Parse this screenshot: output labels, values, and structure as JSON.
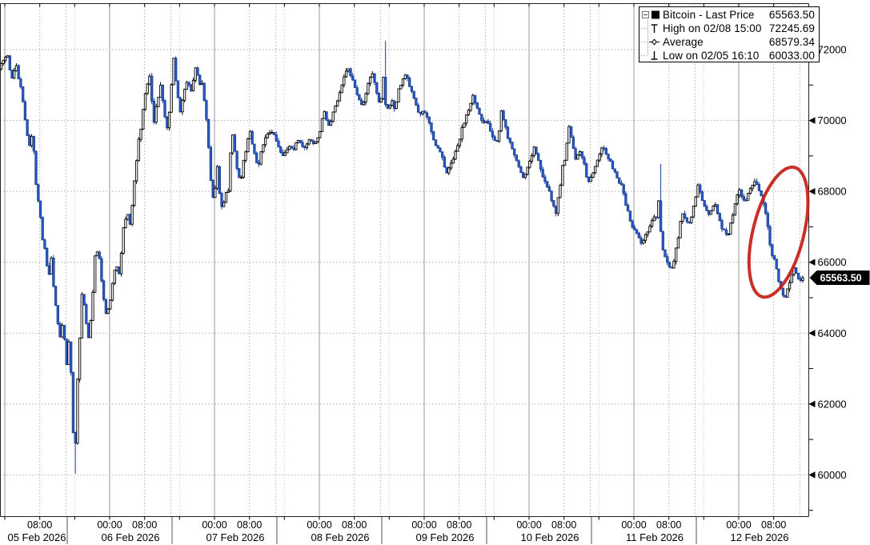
{
  "legend": {
    "rows": [
      {
        "icon": "expander-and-series-swatch",
        "label": "Bitcoin - Last Price",
        "value": "65563.50"
      },
      {
        "icon": "high-marker",
        "label": "High on 02/08 15:00",
        "value": "72245.69"
      },
      {
        "icon": "average-marker",
        "label": "Average",
        "value": "68579.34"
      },
      {
        "icon": "low-marker",
        "label": "Low on 02/05 16:10",
        "value": "60033.00"
      }
    ]
  },
  "last_price_tag": "65563.50",
  "y_axis": {
    "tick_values": [
      72000,
      70000,
      68000,
      66000,
      64000,
      62000,
      60000
    ],
    "minor_tick_values": [
      73000,
      71000,
      69000,
      67000,
      65000,
      63000,
      61000,
      59000
    ],
    "side": "right"
  },
  "x_axis": {
    "days": [
      {
        "date": "05 Feb 2026",
        "times": [
          "08:00"
        ]
      },
      {
        "date": "06 Feb 2026",
        "times": [
          "00:00",
          "08:00"
        ]
      },
      {
        "date": "07 Feb 2026",
        "times": [
          "00:00",
          "08:00"
        ]
      },
      {
        "date": "08 Feb 2026",
        "times": [
          "00:00",
          "08:00"
        ]
      },
      {
        "date": "09 Feb 2026",
        "times": [
          "00:00",
          "08:00"
        ]
      },
      {
        "date": "10 Feb 2026",
        "times": [
          "00:00",
          "08:00"
        ]
      },
      {
        "date": "11 Feb 2026",
        "times": [
          "00:00",
          "08:00"
        ]
      },
      {
        "date": "12 Feb 2026",
        "times": [
          "00:00",
          "08:00"
        ]
      }
    ]
  },
  "colors": {
    "candle_up_fill": "#ffffff",
    "candle_up_stroke": "#000000",
    "candle_down_fill": "#2b5fc5",
    "candle_down_stroke": "#1a3f96",
    "grid": "#8a8a8a",
    "day_line": "#9a9a9a",
    "axis_line": "#222222",
    "annotation_red": "#c42018",
    "badge_bg": "#000000",
    "badge_text": "#ffffff"
  },
  "chart_data": {
    "type": "candlestick",
    "title": "Bitcoin - Last Price",
    "last_price": 65563.5,
    "high": {
      "time": "02/08 15:00",
      "value": 72245.69
    },
    "average": 68579.34,
    "low": {
      "time": "02/05 16:10",
      "value": 60033.0
    },
    "ylim": [
      58800,
      73300
    ],
    "x_start": "05 Feb 2026 00:00",
    "x_end": "12 Feb 2026 15:00",
    "grid": true,
    "legend_position": "top-right",
    "series_units": "USD",
    "anchor_points_hours_vs_price": [
      [
        -1.6,
        71350
      ],
      [
        -0.8,
        71520
      ],
      [
        0.8,
        71900
      ],
      [
        1.8,
        71150
      ],
      [
        2.9,
        71550
      ],
      [
        4,
        70800
      ],
      [
        5.1,
        69900
      ],
      [
        5.8,
        69250
      ],
      [
        6.6,
        69600
      ],
      [
        7.4,
        68300
      ],
      [
        8.2,
        67400
      ],
      [
        8.8,
        66800
      ],
      [
        9.5,
        66300
      ],
      [
        10.3,
        65600
      ],
      [
        10.9,
        66200
      ],
      [
        11.7,
        64900
      ],
      [
        12.8,
        63900
      ],
      [
        13.6,
        64400
      ],
      [
        14.3,
        63000
      ],
      [
        15,
        63800
      ],
      [
        15.6,
        62500
      ],
      [
        16.17,
        60033
      ],
      [
        16.6,
        62300
      ],
      [
        17.2,
        63300
      ],
      [
        17.6,
        64400
      ],
      [
        18,
        65300
      ],
      [
        18.5,
        64700
      ],
      [
        19.3,
        63800
      ],
      [
        20.2,
        64700
      ],
      [
        20.9,
        66100
      ],
      [
        21.7,
        66400
      ],
      [
        22.5,
        65400
      ],
      [
        23.3,
        64600
      ],
      [
        24.2,
        64700
      ],
      [
        24.8,
        65300
      ],
      [
        25.8,
        66000
      ],
      [
        26.4,
        65600
      ],
      [
        27.3,
        66800
      ],
      [
        28.2,
        67500
      ],
      [
        29,
        67100
      ],
      [
        29.9,
        68300
      ],
      [
        31.1,
        69600
      ],
      [
        32.3,
        70600
      ],
      [
        33.3,
        71350
      ],
      [
        34.4,
        69950
      ],
      [
        35.2,
        70600
      ],
      [
        36,
        71000
      ],
      [
        36.8,
        70100
      ],
      [
        37.6,
        69700
      ],
      [
        38.3,
        70900
      ],
      [
        38.9,
        71750
      ],
      [
        39.6,
        70900
      ],
      [
        40.3,
        70200
      ],
      [
        41.1,
        70700
      ],
      [
        42,
        71100
      ],
      [
        42.9,
        70800
      ],
      [
        44,
        71550
      ],
      [
        44.7,
        71100
      ],
      [
        45.5,
        71000
      ],
      [
        46.2,
        70300
      ],
      [
        46.8,
        69300
      ],
      [
        47.4,
        68400
      ],
      [
        48.1,
        67600
      ],
      [
        48.5,
        68200
      ],
      [
        48.9,
        68730
      ],
      [
        49.4,
        67900
      ],
      [
        50.1,
        67500
      ],
      [
        50.8,
        67900
      ],
      [
        51.5,
        68100
      ],
      [
        52.2,
        69850
      ],
      [
        52.8,
        69200
      ],
      [
        53.6,
        68500
      ],
      [
        54.3,
        68300
      ],
      [
        55,
        68900
      ],
      [
        55.8,
        69400
      ],
      [
        56.5,
        69750
      ],
      [
        57.2,
        69100
      ],
      [
        58.2,
        68700
      ],
      [
        59.1,
        69200
      ],
      [
        60,
        69500
      ],
      [
        61,
        69700
      ],
      [
        61.9,
        69600
      ],
      [
        62.8,
        69350
      ],
      [
        63.7,
        68950
      ],
      [
        64.6,
        69150
      ],
      [
        65.5,
        69300
      ],
      [
        66.4,
        69200
      ],
      [
        67.3,
        69450
      ],
      [
        68.2,
        69300
      ],
      [
        69.1,
        69250
      ],
      [
        70,
        69500
      ],
      [
        70.9,
        69350
      ],
      [
        71.8,
        69450
      ],
      [
        72.4,
        69700
      ],
      [
        73.2,
        70300
      ],
      [
        73.8,
        70050
      ],
      [
        74.6,
        69800
      ],
      [
        75.3,
        70200
      ],
      [
        76.2,
        70500
      ],
      [
        77.1,
        70900
      ],
      [
        78,
        71300
      ],
      [
        78.9,
        71480
      ],
      [
        79.8,
        71150
      ],
      [
        80.7,
        70850
      ],
      [
        81.4,
        70600
      ],
      [
        82.2,
        70400
      ],
      [
        82.9,
        70800
      ],
      [
        83.7,
        71200
      ],
      [
        84.4,
        71300
      ],
      [
        85.1,
        70900
      ],
      [
        85.8,
        70500
      ],
      [
        86.4,
        70650
      ],
      [
        87,
        71300
      ],
      [
        87.4,
        70450
      ],
      [
        88.1,
        70250
      ],
      [
        88.8,
        70600
      ],
      [
        89.6,
        70300
      ],
      [
        90.4,
        70850
      ],
      [
        91.2,
        71150
      ],
      [
        92,
        71300
      ],
      [
        92.8,
        71000
      ],
      [
        93.6,
        70700
      ],
      [
        94.4,
        70400
      ],
      [
        95.2,
        70200
      ],
      [
        96,
        70300
      ],
      [
        96.7,
        70150
      ],
      [
        97.4,
        69900
      ],
      [
        98.1,
        69500
      ],
      [
        98.8,
        69300
      ],
      [
        99.6,
        69150
      ],
      [
        100.4,
        68950
      ],
      [
        101.3,
        68500
      ],
      [
        102,
        68650
      ],
      [
        102.8,
        68900
      ],
      [
        103.5,
        69100
      ],
      [
        104.3,
        69450
      ],
      [
        105,
        69800
      ],
      [
        105.8,
        70150
      ],
      [
        106.7,
        70450
      ],
      [
        107.4,
        70700
      ],
      [
        108.2,
        70350
      ],
      [
        109,
        70100
      ],
      [
        109.8,
        69900
      ],
      [
        110.6,
        70050
      ],
      [
        111.5,
        69700
      ],
      [
        112.4,
        69450
      ],
      [
        113.2,
        69400
      ],
      [
        113.8,
        70300
      ],
      [
        114.6,
        69900
      ],
      [
        115.5,
        69500
      ],
      [
        116.4,
        69200
      ],
      [
        117.3,
        68900
      ],
      [
        118.2,
        68600
      ],
      [
        119.1,
        68350
      ],
      [
        119.8,
        68700
      ],
      [
        120.6,
        68900
      ],
      [
        121.4,
        69250
      ],
      [
        122.3,
        68900
      ],
      [
        123.2,
        68500
      ],
      [
        124.1,
        68300
      ],
      [
        125,
        67900
      ],
      [
        125.6,
        67750
      ],
      [
        126.3,
        67300
      ],
      [
        127.1,
        68000
      ],
      [
        127.8,
        68600
      ],
      [
        128.6,
        69100
      ],
      [
        129.4,
        69850
      ],
      [
        130.2,
        69300
      ],
      [
        131,
        68900
      ],
      [
        131.9,
        69100
      ],
      [
        132.8,
        68800
      ],
      [
        133.7,
        68200
      ],
      [
        134.6,
        68450
      ],
      [
        135.5,
        68800
      ],
      [
        136.4,
        69100
      ],
      [
        137.1,
        69300
      ],
      [
        138,
        69000
      ],
      [
        138.9,
        68800
      ],
      [
        139.8,
        68600
      ],
      [
        140.7,
        68300
      ],
      [
        141.6,
        68100
      ],
      [
        142.5,
        67600
      ],
      [
        143.4,
        67100
      ],
      [
        144.3,
        66950
      ],
      [
        145.2,
        66700
      ],
      [
        146,
        66500
      ],
      [
        146.7,
        66700
      ],
      [
        147.5,
        66900
      ],
      [
        148.2,
        67100
      ],
      [
        149,
        67300
      ],
      [
        149.7,
        67200
      ],
      [
        150.1,
        68250
      ],
      [
        150.5,
        66400
      ],
      [
        151.3,
        66100
      ],
      [
        152.2,
        65900
      ],
      [
        153.1,
        65800
      ],
      [
        154,
        66400
      ],
      [
        154.9,
        67100
      ],
      [
        155.3,
        67420
      ],
      [
        156,
        67200
      ],
      [
        156.8,
        67100
      ],
      [
        157.5,
        67300
      ],
      [
        158.2,
        67700
      ],
      [
        158.9,
        68150
      ],
      [
        159.6,
        67900
      ],
      [
        160.4,
        67600
      ],
      [
        161.2,
        67300
      ],
      [
        162,
        67500
      ],
      [
        162.8,
        67650
      ],
      [
        163.5,
        67300
      ],
      [
        164.3,
        67000
      ],
      [
        165.3,
        66800
      ],
      [
        165.7,
        66650
      ],
      [
        166.2,
        67000
      ],
      [
        166.9,
        67400
      ],
      [
        167.6,
        67750
      ],
      [
        168.4,
        68030
      ],
      [
        169.1,
        67800
      ],
      [
        169.8,
        67700
      ],
      [
        170.6,
        68000
      ],
      [
        171.3,
        68200
      ],
      [
        172.1,
        68330
      ],
      [
        172.8,
        68100
      ],
      [
        173.4,
        67900
      ],
      [
        173.9,
        67600
      ],
      [
        174.7,
        67150
      ],
      [
        175.2,
        66700
      ],
      [
        175.8,
        66300
      ],
      [
        176.5,
        66100
      ],
      [
        177,
        65700
      ],
      [
        177.6,
        65400
      ],
      [
        178.1,
        65100
      ],
      [
        178.9,
        64980
      ],
      [
        179.4,
        65200
      ],
      [
        180,
        65500
      ],
      [
        180.5,
        65750
      ],
      [
        181.1,
        65880
      ],
      [
        181.6,
        65600
      ],
      [
        182.2,
        65480
      ],
      [
        182.9,
        65563.5
      ]
    ],
    "annotations": [
      {
        "type": "ellipse",
        "purpose": "highlight-selloff",
        "t_center_hours": 177.1,
        "price_center": 66850,
        "t_radius_hours": 5.8,
        "price_radius": 1880,
        "rotation_deg": 14,
        "color": "#c42018"
      }
    ]
  }
}
